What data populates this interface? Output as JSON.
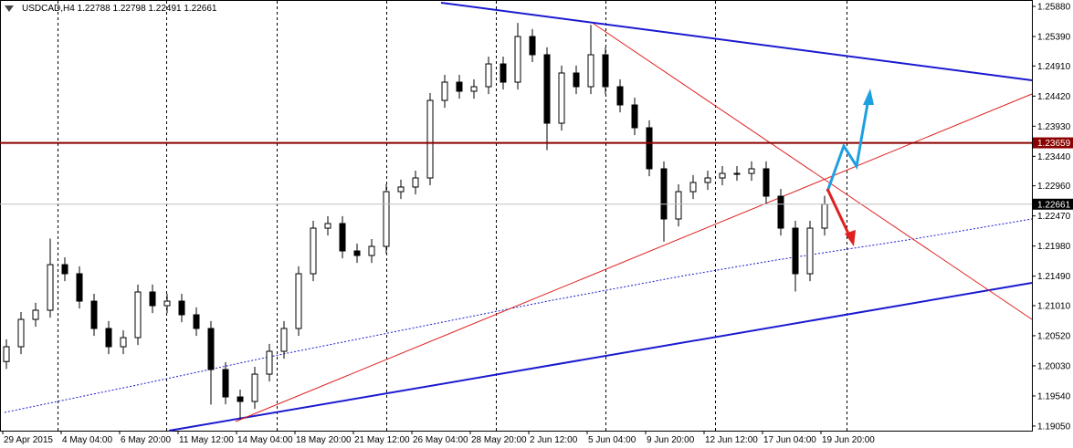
{
  "chart_data": {
    "type": "candlestick",
    "title": "USDCAD,H4  1.22788 1.22798 1.22491 1.22661",
    "x": [
      1,
      5,
      9,
      13,
      17,
      21,
      25,
      29,
      33,
      37,
      41,
      45,
      49,
      53,
      57,
      61,
      65,
      69,
      73,
      77,
      81,
      85,
      89,
      93,
      97,
      101,
      105,
      109,
      113,
      117,
      121,
      125,
      129,
      133,
      137,
      141,
      145,
      149,
      153,
      157,
      161,
      165,
      169,
      173,
      177,
      181,
      185,
      189,
      193,
      197,
      201,
      205,
      209,
      213,
      217,
      221,
      225
    ],
    "open": [
      1.201,
      1.20341,
      1.20786,
      1.20935,
      1.21677,
      1.21529,
      1.21083,
      1.20638,
      1.20341,
      1.20489,
      1.21232,
      1.21009,
      1.21083,
      1.20861,
      1.20638,
      1.1997,
      1.19524,
      1.1945,
      1.19895,
      1.20267,
      1.20638,
      1.21529,
      1.22271,
      1.22346,
      1.219,
      1.21826,
      1.21974,
      1.22865,
      1.2294,
      1.23088,
      1.2435,
      1.24647,
      1.24499,
      1.24573,
      1.24944,
      1.24647,
      1.2539,
      1.25093,
      1.23979,
      1.24796,
      1.24573,
      1.25093,
      1.24573,
      1.24276,
      1.23905,
      1.23237,
      1.2242,
      1.22865,
      1.23014,
      1.23088,
      1.23162,
      1.23162,
      1.23237,
      1.22791,
      1.22271,
      1.21529,
      1.22271
    ],
    "high": [
      1.20461,
      1.20906,
      1.21055,
      1.221,
      1.21797,
      1.21649,
      1.21203,
      1.20758,
      1.20609,
      1.21352,
      1.21352,
      1.21203,
      1.21203,
      1.20981,
      1.20758,
      1.2009,
      1.19644,
      1.20015,
      1.20387,
      1.20758,
      1.21649,
      1.22391,
      1.22466,
      1.22466,
      1.2202,
      1.22094,
      1.22985,
      1.2306,
      1.23208,
      1.2447,
      1.24767,
      1.24767,
      1.24693,
      1.25064,
      1.25064,
      1.2561,
      1.2551,
      1.25213,
      1.24916,
      1.24916,
      1.2558,
      1.25213,
      1.24693,
      1.24396,
      1.24025,
      1.23357,
      1.22985,
      1.23134,
      1.23208,
      1.23282,
      1.23282,
      1.23357,
      1.23357,
      1.22911,
      1.22391,
      1.22391,
      1.22798
    ],
    "low": [
      1.1998,
      1.20221,
      1.20666,
      1.20815,
      1.21409,
      1.20963,
      1.20518,
      1.20221,
      1.20221,
      1.20369,
      1.20889,
      1.20889,
      1.20741,
      1.20518,
      1.194,
      1.19404,
      1.1916,
      1.1933,
      1.19775,
      1.20147,
      1.20518,
      1.21409,
      1.22151,
      1.2178,
      1.21706,
      1.21706,
      1.21854,
      1.22745,
      1.2282,
      1.22968,
      1.2423,
      1.24379,
      1.24379,
      1.24453,
      1.24527,
      1.24527,
      1.24973,
      1.2354,
      1.23859,
      1.24453,
      1.24453,
      1.24453,
      1.24156,
      1.23785,
      1.23117,
      1.2205,
      1.223,
      1.22745,
      1.22894,
      1.22968,
      1.23042,
      1.23042,
      1.22671,
      1.22151,
      1.2124,
      1.21409,
      1.22151
    ],
    "close": [
      1.20341,
      1.20786,
      1.20935,
      1.21677,
      1.21529,
      1.21083,
      1.20638,
      1.20341,
      1.20489,
      1.21232,
      1.21009,
      1.21083,
      1.20861,
      1.20638,
      1.1997,
      1.19524,
      1.1945,
      1.19895,
      1.20267,
      1.20638,
      1.21529,
      1.22271,
      1.22346,
      1.219,
      1.21826,
      1.21974,
      1.22865,
      1.2294,
      1.23088,
      1.2435,
      1.24647,
      1.24499,
      1.24573,
      1.24944,
      1.24647,
      1.2539,
      1.25093,
      1.23979,
      1.24796,
      1.24573,
      1.25093,
      1.24573,
      1.24276,
      1.23905,
      1.23237,
      1.2242,
      1.22865,
      1.23014,
      1.23088,
      1.23162,
      1.23162,
      1.23237,
      1.22791,
      1.22271,
      1.21529,
      1.22271,
      1.22661
    ],
    "xlim": [
      0,
      282
    ],
    "xticks": [
      {
        "value": 0,
        "label": "29 Apr 2015"
      },
      {
        "value": 16,
        "label": "4 May 04:00"
      },
      {
        "value": 32,
        "label": "6 May 20:00"
      },
      {
        "value": 48,
        "label": "11 May 12:00"
      },
      {
        "value": 64,
        "label": "14 May 04:00"
      },
      {
        "value": 80,
        "label": "18 May 20:00"
      },
      {
        "value": 96,
        "label": "21 May 12:00"
      },
      {
        "value": 112,
        "label": "26 May 04:00"
      },
      {
        "value": 128,
        "label": "28 May 20:00"
      },
      {
        "value": 144,
        "label": "2 Jun 12:00"
      },
      {
        "value": 160,
        "label": "5 Jun 04:00"
      },
      {
        "value": 176,
        "label": "9 Jun 20:00"
      },
      {
        "value": 192,
        "label": "12 Jun 12:00"
      },
      {
        "value": 208,
        "label": "17 Jun 04:00"
      },
      {
        "value": 224,
        "label": "19 Jun 20:00"
      }
    ],
    "ylim": [
      1.18975,
      1.25984
    ],
    "yticks": [
      {
        "value": 1.2588,
        "label": "1.25880"
      },
      {
        "value": 1.2539,
        "label": "1.25390"
      },
      {
        "value": 1.2491,
        "label": "1.24910"
      },
      {
        "value": 1.2442,
        "label": "1.24420"
      },
      {
        "value": 1.2393,
        "label": "1.23930"
      },
      {
        "value": 1.2344,
        "label": "1.23440"
      },
      {
        "value": 1.2296,
        "label": "1.22960"
      },
      {
        "value": 1.2247,
        "label": "1.22470"
      },
      {
        "value": 1.2198,
        "label": "1.21980"
      },
      {
        "value": 1.2149,
        "label": "1.21490"
      },
      {
        "value": 1.2101,
        "label": "1.21010"
      },
      {
        "value": 1.2052,
        "label": "1.20520"
      },
      {
        "value": 1.2003,
        "label": "1.20030"
      },
      {
        "value": 1.1954,
        "label": "1.19540"
      },
      {
        "value": 1.1905,
        "label": "1.19050"
      }
    ],
    "level": 1.23659,
    "level_color": "#8b0000",
    "last_price": 1.22661,
    "last_price_color": "#000000",
    "up_color": "#ffffff",
    "down_color": "#000000"
  }
}
